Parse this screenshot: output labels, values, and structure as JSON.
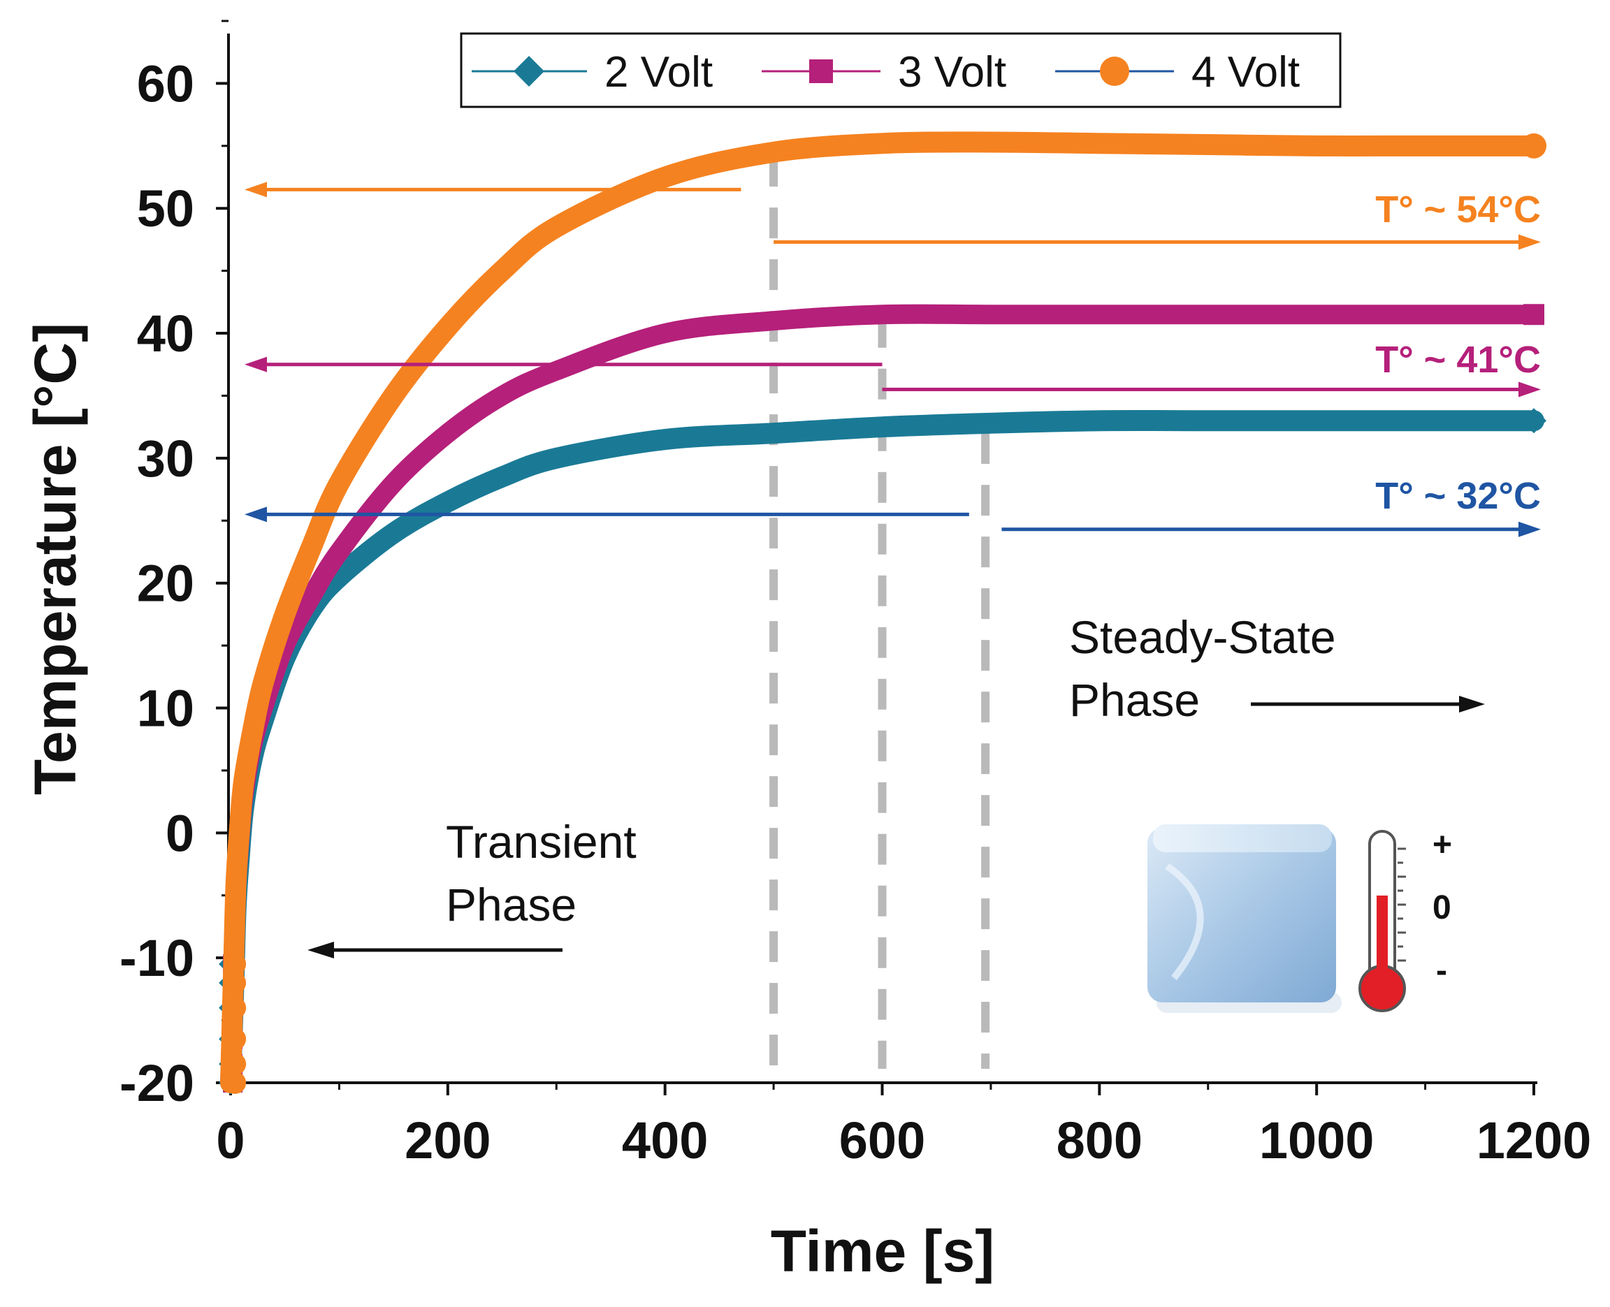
{
  "chart_data": {
    "type": "line",
    "xlabel": "Time [s]",
    "ylabel": "Temperature [°C]",
    "xlim": [
      0,
      1200
    ],
    "ylim": [
      -20,
      65
    ],
    "xticks": [
      0,
      200,
      400,
      600,
      800,
      1000,
      1200
    ],
    "yticks": [
      -20,
      -10,
      0,
      10,
      20,
      30,
      40,
      50,
      60
    ],
    "xtick_labels": [
      "0",
      "200",
      "400",
      "600",
      "800",
      "1000",
      "1200"
    ],
    "ytick_labels": [
      "-20",
      "-10",
      "0",
      "10",
      "20",
      "30",
      "40",
      "50",
      "60"
    ],
    "grid": false,
    "legend_position": "top",
    "series": [
      {
        "name": "2 Volt",
        "color": "#1a7a96",
        "marker": "diamond",
        "x": [
          0,
          3,
          5,
          8,
          12,
          20,
          30,
          50,
          75,
          100,
          150,
          200,
          250,
          300,
          400,
          500,
          600,
          700,
          800,
          900,
          1000,
          1100,
          1200
        ],
        "y": [
          -20,
          -12,
          -6,
          -2,
          2,
          6,
          9,
          14,
          18,
          20.5,
          24,
          26.5,
          28.5,
          30,
          31.5,
          32,
          32.5,
          32.8,
          33,
          33,
          33,
          33,
          33
        ]
      },
      {
        "name": "3 Volt",
        "color": "#b5207a",
        "marker": "square",
        "x": [
          0,
          3,
          5,
          8,
          12,
          20,
          30,
          50,
          75,
          100,
          150,
          200,
          250,
          300,
          400,
          500,
          600,
          700,
          800,
          900,
          1000,
          1100,
          1200
        ],
        "y": [
          -20,
          -11,
          -5,
          -1,
          3,
          7,
          10,
          15,
          19,
          22.5,
          28,
          32,
          35,
          37,
          40,
          41,
          41.5,
          41.5,
          41.5,
          41.5,
          41.5,
          41.5,
          41.5
        ]
      },
      {
        "name": "4 Volt",
        "color": "#f58220",
        "marker": "circle",
        "x": [
          0,
          3,
          5,
          8,
          12,
          20,
          30,
          50,
          75,
          100,
          150,
          200,
          250,
          300,
          400,
          500,
          600,
          700,
          800,
          900,
          1000,
          1100,
          1200
        ],
        "y": [
          -20,
          -10,
          -4,
          0,
          4,
          8,
          12,
          17.5,
          23,
          28,
          35,
          40.5,
          45,
          48.5,
          52.5,
          54.5,
          55.2,
          55.3,
          55.2,
          55.1,
          55,
          55,
          55
        ]
      }
    ],
    "annotations": {
      "temps": [
        {
          "text": "T° ~ 54°C",
          "color": "#f58220",
          "y": 51.5,
          "left_arrow_x_end": 470,
          "right_arrow_x_start": 500,
          "right_arrow_y": 47.3
        },
        {
          "text": "T° ~ 41°C",
          "color": "#b5207a",
          "y": 37.5,
          "left_arrow_x_end": 600,
          "right_arrow_x_start": 600,
          "right_arrow_y": 35.5
        },
        {
          "text": "T° ~ 32°C",
          "color": "#1f55a3",
          "y": 25.5,
          "left_arrow_x_end": 680,
          "right_arrow_x_start": 710,
          "right_arrow_y": 24.3
        }
      ],
      "dashed_lines_x": [
        500,
        600,
        695
      ],
      "transient_label": [
        "Transient",
        "Phase"
      ],
      "steady_label": [
        "Steady-State",
        "Phase"
      ],
      "thermometer_labels": [
        "+",
        "0",
        "-"
      ]
    }
  }
}
